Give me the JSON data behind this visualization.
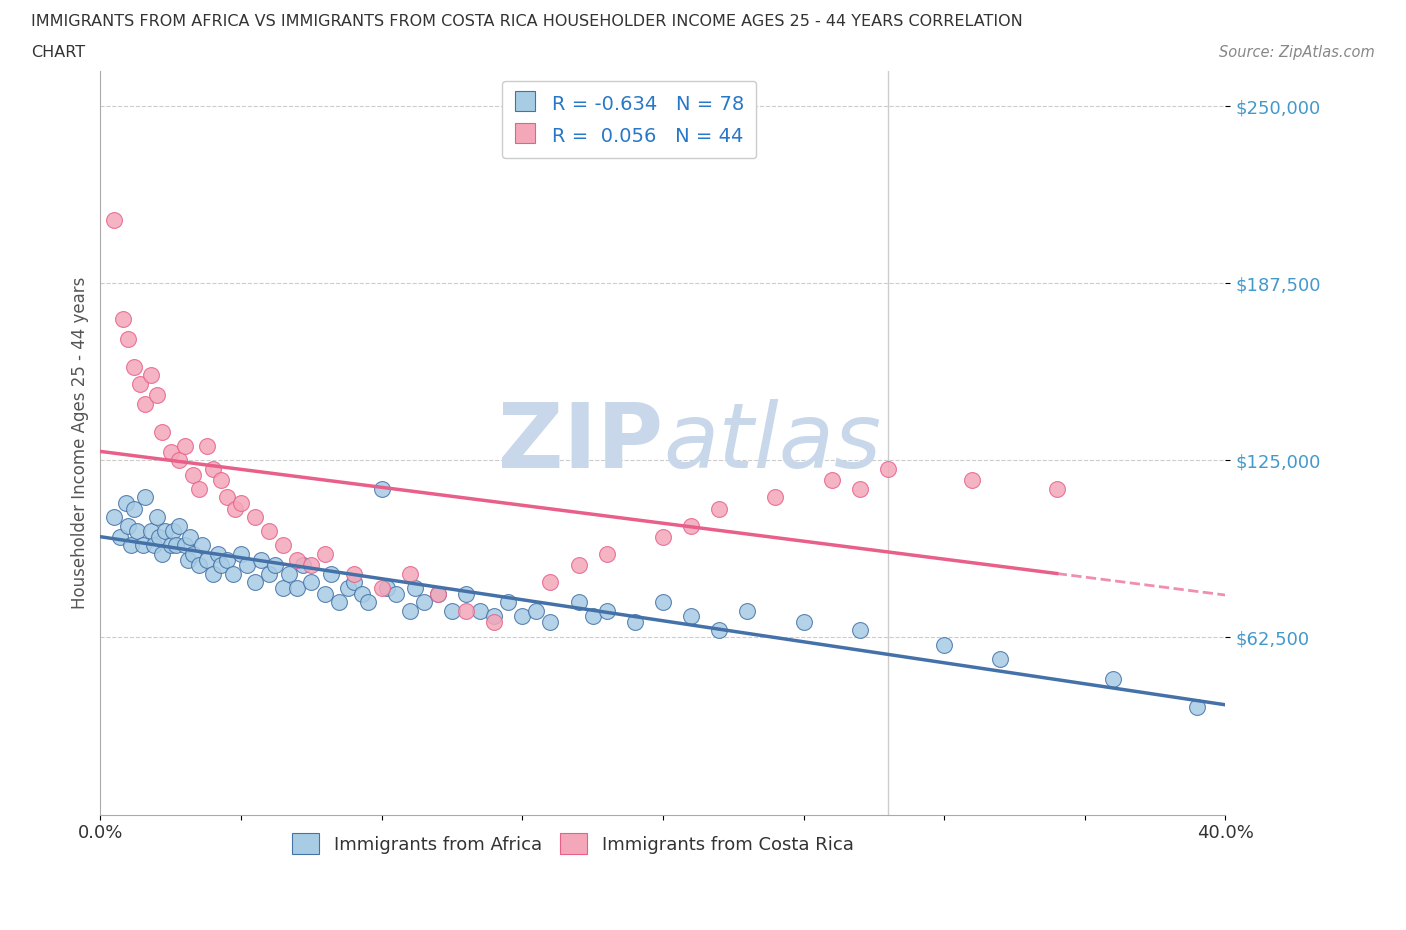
{
  "title_line1": "IMMIGRANTS FROM AFRICA VS IMMIGRANTS FROM COSTA RICA HOUSEHOLDER INCOME AGES 25 - 44 YEARS CORRELATION",
  "title_line2": "CHART",
  "source_text": "Source: ZipAtlas.com",
  "ylabel": "Householder Income Ages 25 - 44 years",
  "xlim": [
    0.0,
    0.4
  ],
  "ylim": [
    0,
    262500
  ],
  "ytick_labels": [
    "$62,500",
    "$125,000",
    "$187,500",
    "$250,000"
  ],
  "ytick_values": [
    62500,
    125000,
    187500,
    250000
  ],
  "xtick_values": [
    0.0,
    0.05,
    0.1,
    0.15,
    0.2,
    0.25,
    0.3,
    0.35,
    0.4
  ],
  "xtick_labels": [
    "0.0%",
    "",
    "",
    "",
    "",
    "",
    "",
    "",
    "40.0%"
  ],
  "R_africa": -0.634,
  "N_africa": 78,
  "R_costa_rica": 0.056,
  "N_costa_rica": 44,
  "africa_color": "#a8cce4",
  "costa_rica_color": "#f4a7b9",
  "africa_line_color": "#4472a8",
  "costa_rica_line_color": "#e8608a",
  "watermark_color": "#c8d8ea",
  "vertical_line_x": 0.28,
  "africa_scatter_x": [
    0.005,
    0.007,
    0.009,
    0.01,
    0.011,
    0.012,
    0.013,
    0.015,
    0.016,
    0.018,
    0.019,
    0.02,
    0.021,
    0.022,
    0.023,
    0.025,
    0.026,
    0.027,
    0.028,
    0.03,
    0.031,
    0.032,
    0.033,
    0.035,
    0.036,
    0.038,
    0.04,
    0.042,
    0.043,
    0.045,
    0.047,
    0.05,
    0.052,
    0.055,
    0.057,
    0.06,
    0.062,
    0.065,
    0.067,
    0.07,
    0.072,
    0.075,
    0.08,
    0.082,
    0.085,
    0.088,
    0.09,
    0.093,
    0.095,
    0.1,
    0.102,
    0.105,
    0.11,
    0.112,
    0.115,
    0.12,
    0.125,
    0.13,
    0.135,
    0.14,
    0.145,
    0.15,
    0.155,
    0.16,
    0.17,
    0.175,
    0.18,
    0.19,
    0.2,
    0.21,
    0.22,
    0.23,
    0.25,
    0.27,
    0.3,
    0.32,
    0.36,
    0.39
  ],
  "africa_scatter_y": [
    105000,
    98000,
    110000,
    102000,
    95000,
    108000,
    100000,
    95000,
    112000,
    100000,
    95000,
    105000,
    98000,
    92000,
    100000,
    95000,
    100000,
    95000,
    102000,
    95000,
    90000,
    98000,
    92000,
    88000,
    95000,
    90000,
    85000,
    92000,
    88000,
    90000,
    85000,
    92000,
    88000,
    82000,
    90000,
    85000,
    88000,
    80000,
    85000,
    80000,
    88000,
    82000,
    78000,
    85000,
    75000,
    80000,
    82000,
    78000,
    75000,
    115000,
    80000,
    78000,
    72000,
    80000,
    75000,
    78000,
    72000,
    78000,
    72000,
    70000,
    75000,
    70000,
    72000,
    68000,
    75000,
    70000,
    72000,
    68000,
    75000,
    70000,
    65000,
    72000,
    68000,
    65000,
    60000,
    55000,
    48000,
    38000
  ],
  "costa_rica_scatter_x": [
    0.005,
    0.008,
    0.01,
    0.012,
    0.014,
    0.016,
    0.018,
    0.02,
    0.022,
    0.025,
    0.028,
    0.03,
    0.033,
    0.035,
    0.038,
    0.04,
    0.043,
    0.045,
    0.048,
    0.05,
    0.055,
    0.06,
    0.065,
    0.07,
    0.075,
    0.08,
    0.09,
    0.1,
    0.11,
    0.12,
    0.13,
    0.14,
    0.16,
    0.17,
    0.18,
    0.2,
    0.21,
    0.22,
    0.24,
    0.26,
    0.27,
    0.28,
    0.31,
    0.34
  ],
  "costa_rica_scatter_y": [
    210000,
    175000,
    168000,
    158000,
    152000,
    145000,
    155000,
    148000,
    135000,
    128000,
    125000,
    130000,
    120000,
    115000,
    130000,
    122000,
    118000,
    112000,
    108000,
    110000,
    105000,
    100000,
    95000,
    90000,
    88000,
    92000,
    85000,
    80000,
    85000,
    78000,
    72000,
    68000,
    82000,
    88000,
    92000,
    98000,
    102000,
    108000,
    112000,
    118000,
    115000,
    122000,
    118000,
    115000
  ]
}
